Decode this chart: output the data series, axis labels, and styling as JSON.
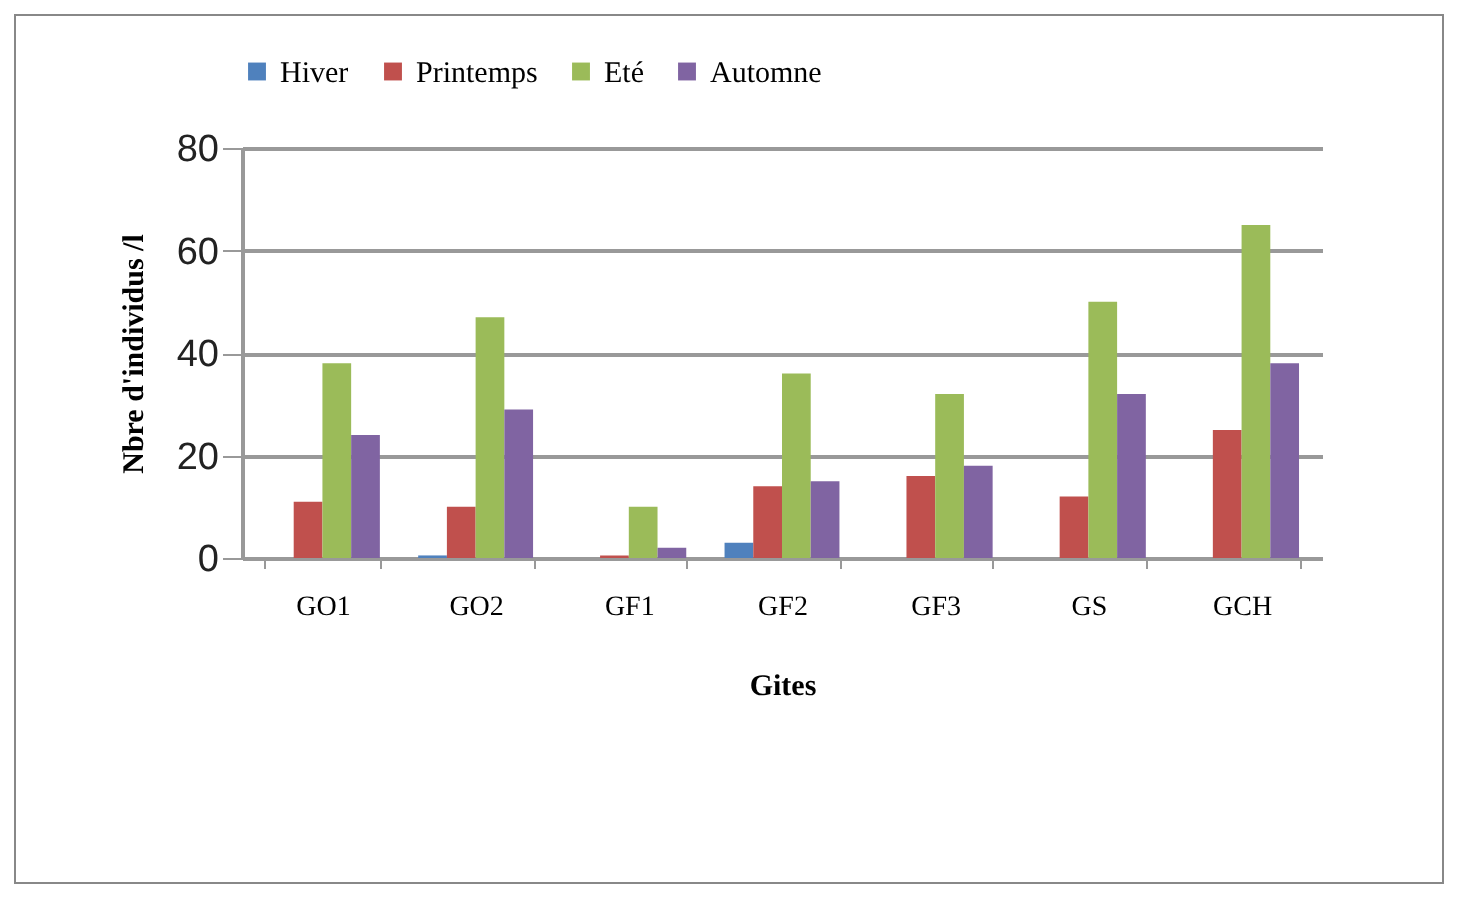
{
  "chart_data": {
    "type": "bar",
    "xlabel": "Gites",
    "ylabel": "Nbre  d'individus /l",
    "categories": [
      "GO1",
      "GO2",
      "GF1",
      "GF2",
      "GF3",
      "GS",
      "GCH"
    ],
    "series": [
      {
        "name": "Hiver",
        "color": "#4f81bd",
        "values": [
          0,
          0.5,
          0,
          3,
          0,
          0,
          0
        ]
      },
      {
        "name": "Printemps",
        "color": "#c0504d",
        "values": [
          11,
          10,
          0.5,
          14,
          16,
          12,
          25
        ]
      },
      {
        "name": "Eté",
        "color": "#9bbb59",
        "values": [
          38,
          47,
          10,
          36,
          32,
          50,
          65
        ]
      },
      {
        "name": "Automne",
        "color": "#8064a2",
        "values": [
          24,
          29,
          2,
          15,
          18,
          32,
          38
        ]
      }
    ],
    "ylim": [
      0,
      80
    ],
    "yticks": [
      0,
      20,
      40,
      60,
      80
    ],
    "grid": "y",
    "legend": "top"
  }
}
